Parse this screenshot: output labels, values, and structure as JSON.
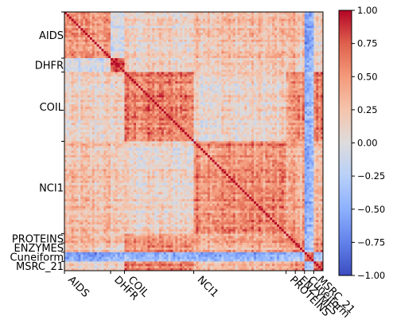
{
  "chart_data": {
    "type": "heatmap",
    "title": "",
    "xlabel": "",
    "ylabel": "",
    "colormap": "coolwarm",
    "value_range": [
      -1.0,
      1.0
    ],
    "groups": [
      {
        "label": "AIDS",
        "size": 20
      },
      {
        "label": "DHFR",
        "size": 6
      },
      {
        "label": "COIL",
        "size": 30
      },
      {
        "label": "NCI1",
        "size": 40
      },
      {
        "label": "PROTEINS",
        "size": 4
      },
      {
        "label": "ENZYMES",
        "size": 4
      },
      {
        "label": "Cuneiform",
        "size": 4
      },
      {
        "label": "MSRC_21",
        "size": 4
      }
    ],
    "x_tick_labels": [
      "AIDS",
      "DHFR",
      "COIL",
      "NCI1",
      "PROTEINS",
      "ENZYMES",
      "Cuneiform",
      "MSRC_21"
    ],
    "y_tick_labels": [
      "AIDS",
      "DHFR",
      "COIL",
      "NCI1",
      "PROTEINS",
      "ENZYMES",
      "Cuneiform",
      "MSRC_21"
    ],
    "block_mean_correlation": [
      [
        0.45,
        -0.05,
        0.1,
        0.25,
        0.3,
        0.2,
        -0.55,
        0.1
      ],
      [
        -0.05,
        0.9,
        0.15,
        0.2,
        0.25,
        0.1,
        -0.4,
        0.15
      ],
      [
        0.1,
        0.15,
        0.6,
        0.1,
        0.45,
        0.55,
        -0.4,
        0.6
      ],
      [
        0.25,
        0.2,
        0.1,
        0.55,
        0.4,
        0.35,
        -0.45,
        0.3
      ],
      [
        0.3,
        0.25,
        0.45,
        0.4,
        0.6,
        0.45,
        -0.35,
        0.4
      ],
      [
        0.2,
        0.1,
        0.55,
        0.35,
        0.45,
        0.65,
        -0.3,
        0.55
      ],
      [
        -0.55,
        -0.4,
        -0.4,
        -0.45,
        -0.35,
        -0.3,
        0.8,
        -0.3
      ],
      [
        0.1,
        0.15,
        0.6,
        0.3,
        0.4,
        0.55,
        -0.3,
        0.7
      ]
    ],
    "colorbar": {
      "ticks": [
        1.0,
        0.75,
        0.5,
        0.25,
        0.0,
        -0.25,
        -0.5,
        -0.75,
        -1.0
      ],
      "tick_labels": [
        "1.00",
        "0.75",
        "0.50",
        "0.25",
        "0.00",
        "−0.25",
        "−0.50",
        "−0.75",
        "−1.00"
      ]
    },
    "grid": false,
    "legend": "colorbar-right"
  }
}
